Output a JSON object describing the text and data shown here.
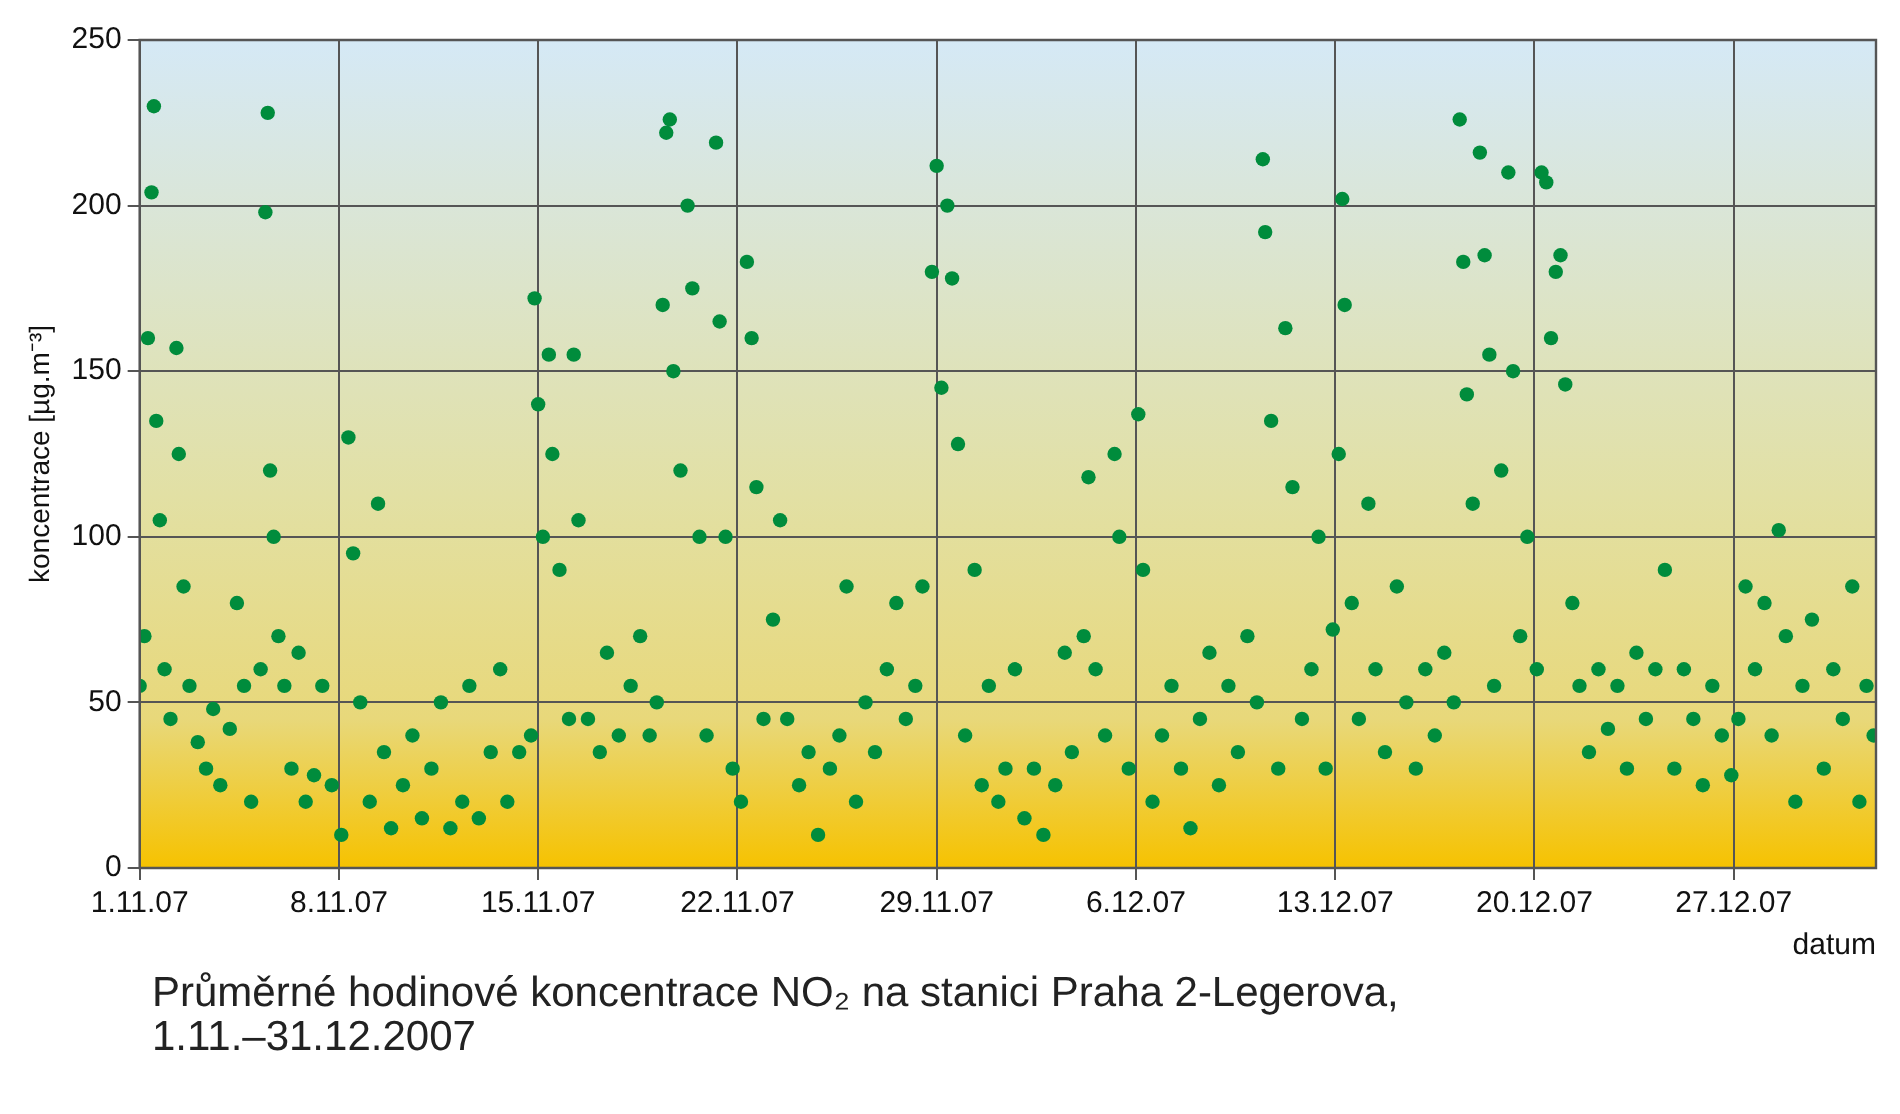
{
  "chart_data": {
    "type": "scatter",
    "title": "Průměrné hodinové koncentrace NO₂ na stanici Praha 2-Legerova, 1.11.–31.12.2007",
    "xlabel": "datum",
    "ylabel": "koncentrace [µg.m⁻³]",
    "xlim": [
      "2007-11-01",
      "2008-01-01"
    ],
    "xticks": [
      {
        "value": "2007-11-01",
        "label": "1.11.07"
      },
      {
        "value": "2007-11-08",
        "label": "8.11.07"
      },
      {
        "value": "2007-11-15",
        "label": "15.11.07"
      },
      {
        "value": "2007-11-22",
        "label": "22.11.07"
      },
      {
        "value": "2007-11-29",
        "label": "29.11.07"
      },
      {
        "value": "2007-12-06",
        "label": "6.12.07"
      },
      {
        "value": "2007-12-13",
        "label": "13.12.07"
      },
      {
        "value": "2007-12-20",
        "label": "20.12.07"
      },
      {
        "value": "2007-12-27",
        "label": "27.12.07"
      }
    ],
    "ylim": [
      0,
      250
    ],
    "yticks": [
      0,
      50,
      100,
      150,
      200,
      250
    ],
    "grid": true,
    "marker": "circle",
    "x": [
      "2007-11-01T00:00",
      "2007-11-01T04:00",
      "2007-11-01T07:00",
      "2007-11-01T10:00",
      "2007-11-01T12:00",
      "2007-11-01T14:00",
      "2007-11-01T17:00",
      "2007-11-01T21:00",
      "2007-11-02T02:00",
      "2007-11-02T07:00",
      "2007-11-02T09:00",
      "2007-11-02T13:00",
      "2007-11-02T18:00",
      "2007-11-03T01:00",
      "2007-11-03T08:00",
      "2007-11-03T14:00",
      "2007-11-03T20:00",
      "2007-11-04T04:00",
      "2007-11-04T10:00",
      "2007-11-04T16:00",
      "2007-11-04T22:00",
      "2007-11-05T06:00",
      "2007-11-05T10:00",
      "2007-11-05T12:00",
      "2007-11-05T14:00",
      "2007-11-05T17:00",
      "2007-11-05T21:00",
      "2007-11-06T02:00",
      "2007-11-06T08:00",
      "2007-11-06T14:00",
      "2007-11-06T20:00",
      "2007-11-07T03:00",
      "2007-11-07T10:00",
      "2007-11-07T18:00",
      "2007-11-08T02:00",
      "2007-11-08T08:00",
      "2007-11-08T12:00",
      "2007-11-08T18:00",
      "2007-11-09T02:00",
      "2007-11-09T09:00",
      "2007-11-09T14:00",
      "2007-11-09T20:00",
      "2007-11-10T06:00",
      "2007-11-10T14:00",
      "2007-11-10T22:00",
      "2007-11-11T06:00",
      "2007-11-11T14:00",
      "2007-11-11T22:00",
      "2007-11-12T08:00",
      "2007-11-12T14:00",
      "2007-11-12T22:00",
      "2007-11-13T08:00",
      "2007-11-13T16:00",
      "2007-11-13T22:00",
      "2007-11-14T08:00",
      "2007-11-14T18:00",
      "2007-11-14T21:00",
      "2007-11-15T00:00",
      "2007-11-15T04:00",
      "2007-11-15T09:00",
      "2007-11-15T12:00",
      "2007-11-15T18:00",
      "2007-11-16T02:00",
      "2007-11-16T06:00",
      "2007-11-16T10:00",
      "2007-11-16T18:00",
      "2007-11-17T04:00",
      "2007-11-17T10:00",
      "2007-11-17T20:00",
      "2007-11-18T06:00",
      "2007-11-18T14:00",
      "2007-11-18T22:00",
      "2007-11-19T04:00",
      "2007-11-19T09:00",
      "2007-11-19T12:00",
      "2007-11-19T15:00",
      "2007-11-19T18:00",
      "2007-11-20T00:00",
      "2007-11-20T06:00",
      "2007-11-20T10:00",
      "2007-11-20T16:00",
      "2007-11-20T22:00",
      "2007-11-21T06:00",
      "2007-11-21T09:00",
      "2007-11-21T14:00",
      "2007-11-21T20:00",
      "2007-11-22T03:00",
      "2007-11-22T08:00",
      "2007-11-22T12:00",
      "2007-11-22T16:00",
      "2007-11-22T22:00",
      "2007-11-23T06:00",
      "2007-11-23T12:00",
      "2007-11-23T18:00",
      "2007-11-24T04:00",
      "2007-11-24T12:00",
      "2007-11-24T20:00",
      "2007-11-25T06:00",
      "2007-11-25T14:00",
      "2007-11-25T20:00",
      "2007-11-26T04:00",
      "2007-11-26T12:00",
      "2007-11-26T20:00",
      "2007-11-27T06:00",
      "2007-11-27T14:00",
      "2007-11-27T22:00",
      "2007-11-28T06:00",
      "2007-11-28T12:00",
      "2007-11-28T20:00",
      "2007-11-29T00:00",
      "2007-11-29T04:00",
      "2007-11-29T09:00",
      "2007-11-29T13:00",
      "2007-11-29T18:00",
      "2007-11-30T00:00",
      "2007-11-30T08:00",
      "2007-11-30T14:00",
      "2007-11-30T20:00",
      "2007-12-01T04:00",
      "2007-12-01T10:00",
      "2007-12-01T18:00",
      "2007-12-02T02:00",
      "2007-12-02T10:00",
      "2007-12-02T18:00",
      "2007-12-03T04:00",
      "2007-12-03T12:00",
      "2007-12-03T18:00",
      "2007-12-04T04:00",
      "2007-12-04T08:00",
      "2007-12-04T14:00",
      "2007-12-04T22:00",
      "2007-12-05T06:00",
      "2007-12-05T10:00",
      "2007-12-05T18:00",
      "2007-12-06T02:00",
      "2007-12-06T06:00",
      "2007-12-06T14:00",
      "2007-12-06T22:00",
      "2007-12-07T06:00",
      "2007-12-07T14:00",
      "2007-12-07T22:00",
      "2007-12-08T06:00",
      "2007-12-08T14:00",
      "2007-12-08T22:00",
      "2007-12-09T06:00",
      "2007-12-09T14:00",
      "2007-12-09T22:00",
      "2007-12-10T06:00",
      "2007-12-10T11:00",
      "2007-12-10T13:00",
      "2007-12-10T18:00",
      "2007-12-11T00:00",
      "2007-12-11T06:00",
      "2007-12-11T12:00",
      "2007-12-11T20:00",
      "2007-12-12T04:00",
      "2007-12-12T10:00",
      "2007-12-12T16:00",
      "2007-12-12T22:00",
      "2007-12-13T03:00",
      "2007-12-13T06:00",
      "2007-12-13T08:00",
      "2007-12-13T14:00",
      "2007-12-13T20:00",
      "2007-12-14T04:00",
      "2007-12-14T10:00",
      "2007-12-14T18:00",
      "2007-12-15T04:00",
      "2007-12-15T12:00",
      "2007-12-15T20:00",
      "2007-12-16T04:00",
      "2007-12-16T12:00",
      "2007-12-16T20:00",
      "2007-12-17T04:00",
      "2007-12-17T09:00",
      "2007-12-17T12:00",
      "2007-12-17T15:00",
      "2007-12-17T20:00",
      "2007-12-18T02:00",
      "2007-12-18T06:00",
      "2007-12-18T10:00",
      "2007-12-18T14:00",
      "2007-12-18T20:00",
      "2007-12-19T02:00",
      "2007-12-19T06:00",
      "2007-12-19T12:00",
      "2007-12-19T18:00",
      "2007-12-20T02:00",
      "2007-12-20T06:00",
      "2007-12-20T10:00",
      "2007-12-20T14:00",
      "2007-12-20T18:00",
      "2007-12-20T22:00",
      "2007-12-21T02:00",
      "2007-12-21T08:00",
      "2007-12-21T14:00",
      "2007-12-21T22:00",
      "2007-12-22T06:00",
      "2007-12-22T14:00",
      "2007-12-22T22:00",
      "2007-12-23T06:00",
      "2007-12-23T14:00",
      "2007-12-23T22:00",
      "2007-12-24T06:00",
      "2007-12-24T14:00",
      "2007-12-24T22:00",
      "2007-12-25T06:00",
      "2007-12-25T14:00",
      "2007-12-25T22:00",
      "2007-12-26T06:00",
      "2007-12-26T14:00",
      "2007-12-26T22:00",
      "2007-12-27T04:00",
      "2007-12-27T10:00",
      "2007-12-27T18:00",
      "2007-12-28T02:00",
      "2007-12-28T08:00",
      "2007-12-28T14:00",
      "2007-12-28T20:00",
      "2007-12-29T04:00",
      "2007-12-29T10:00",
      "2007-12-29T18:00",
      "2007-12-30T04:00",
      "2007-12-30T12:00",
      "2007-12-30T20:00",
      "2007-12-31T04:00",
      "2007-12-31T10:00",
      "2007-12-31T16:00",
      "2007-12-31T22:00"
    ],
    "series": [
      {
        "color": "#008c3c",
        "values": [
          55,
          70,
          160,
          204,
          230,
          135,
          105,
          60,
          45,
          157,
          125,
          85,
          55,
          38,
          30,
          48,
          25,
          42,
          80,
          55,
          20,
          60,
          198,
          228,
          120,
          100,
          70,
          55,
          30,
          65,
          20,
          28,
          55,
          25,
          10,
          130,
          95,
          50,
          20,
          110,
          35,
          12,
          25,
          40,
          15,
          30,
          50,
          12,
          20,
          55,
          15,
          35,
          60,
          20,
          35,
          40,
          172,
          140,
          100,
          155,
          125,
          90,
          45,
          155,
          105,
          45,
          35,
          65,
          40,
          55,
          70,
          40,
          50,
          170,
          222,
          226,
          150,
          120,
          200,
          175,
          100,
          40,
          219,
          165,
          100,
          30,
          20,
          183,
          160,
          115,
          45,
          75,
          105,
          45,
          25,
          35,
          10,
          30,
          40,
          85,
          20,
          50,
          35,
          60,
          80,
          45,
          55,
          85,
          180,
          212,
          145,
          200,
          178,
          128,
          40,
          90,
          25,
          55,
          20,
          30,
          60,
          15,
          30,
          10,
          25,
          65,
          35,
          70,
          118,
          60,
          40,
          125,
          100,
          30,
          137,
          90,
          20,
          40,
          55,
          30,
          12,
          45,
          65,
          25,
          55,
          35,
          70,
          50,
          214,
          192,
          135,
          30,
          163,
          115,
          45,
          60,
          100,
          30,
          72,
          125,
          202,
          170,
          80,
          45,
          110,
          60,
          35,
          85,
          50,
          30,
          60,
          40,
          65,
          50,
          226,
          183,
          143,
          110,
          216,
          185,
          155,
          55,
          120,
          210,
          150,
          70,
          100,
          60,
          210,
          207,
          160,
          180,
          185,
          146,
          80,
          55,
          35,
          60,
          42,
          55,
          30,
          65,
          45,
          60,
          90,
          30,
          60,
          45,
          25,
          55,
          40,
          28,
          45,
          85,
          60,
          80,
          40,
          102,
          70,
          20,
          55,
          75,
          30,
          60,
          45,
          85,
          20,
          55,
          40
        ]
      }
    ]
  }
}
